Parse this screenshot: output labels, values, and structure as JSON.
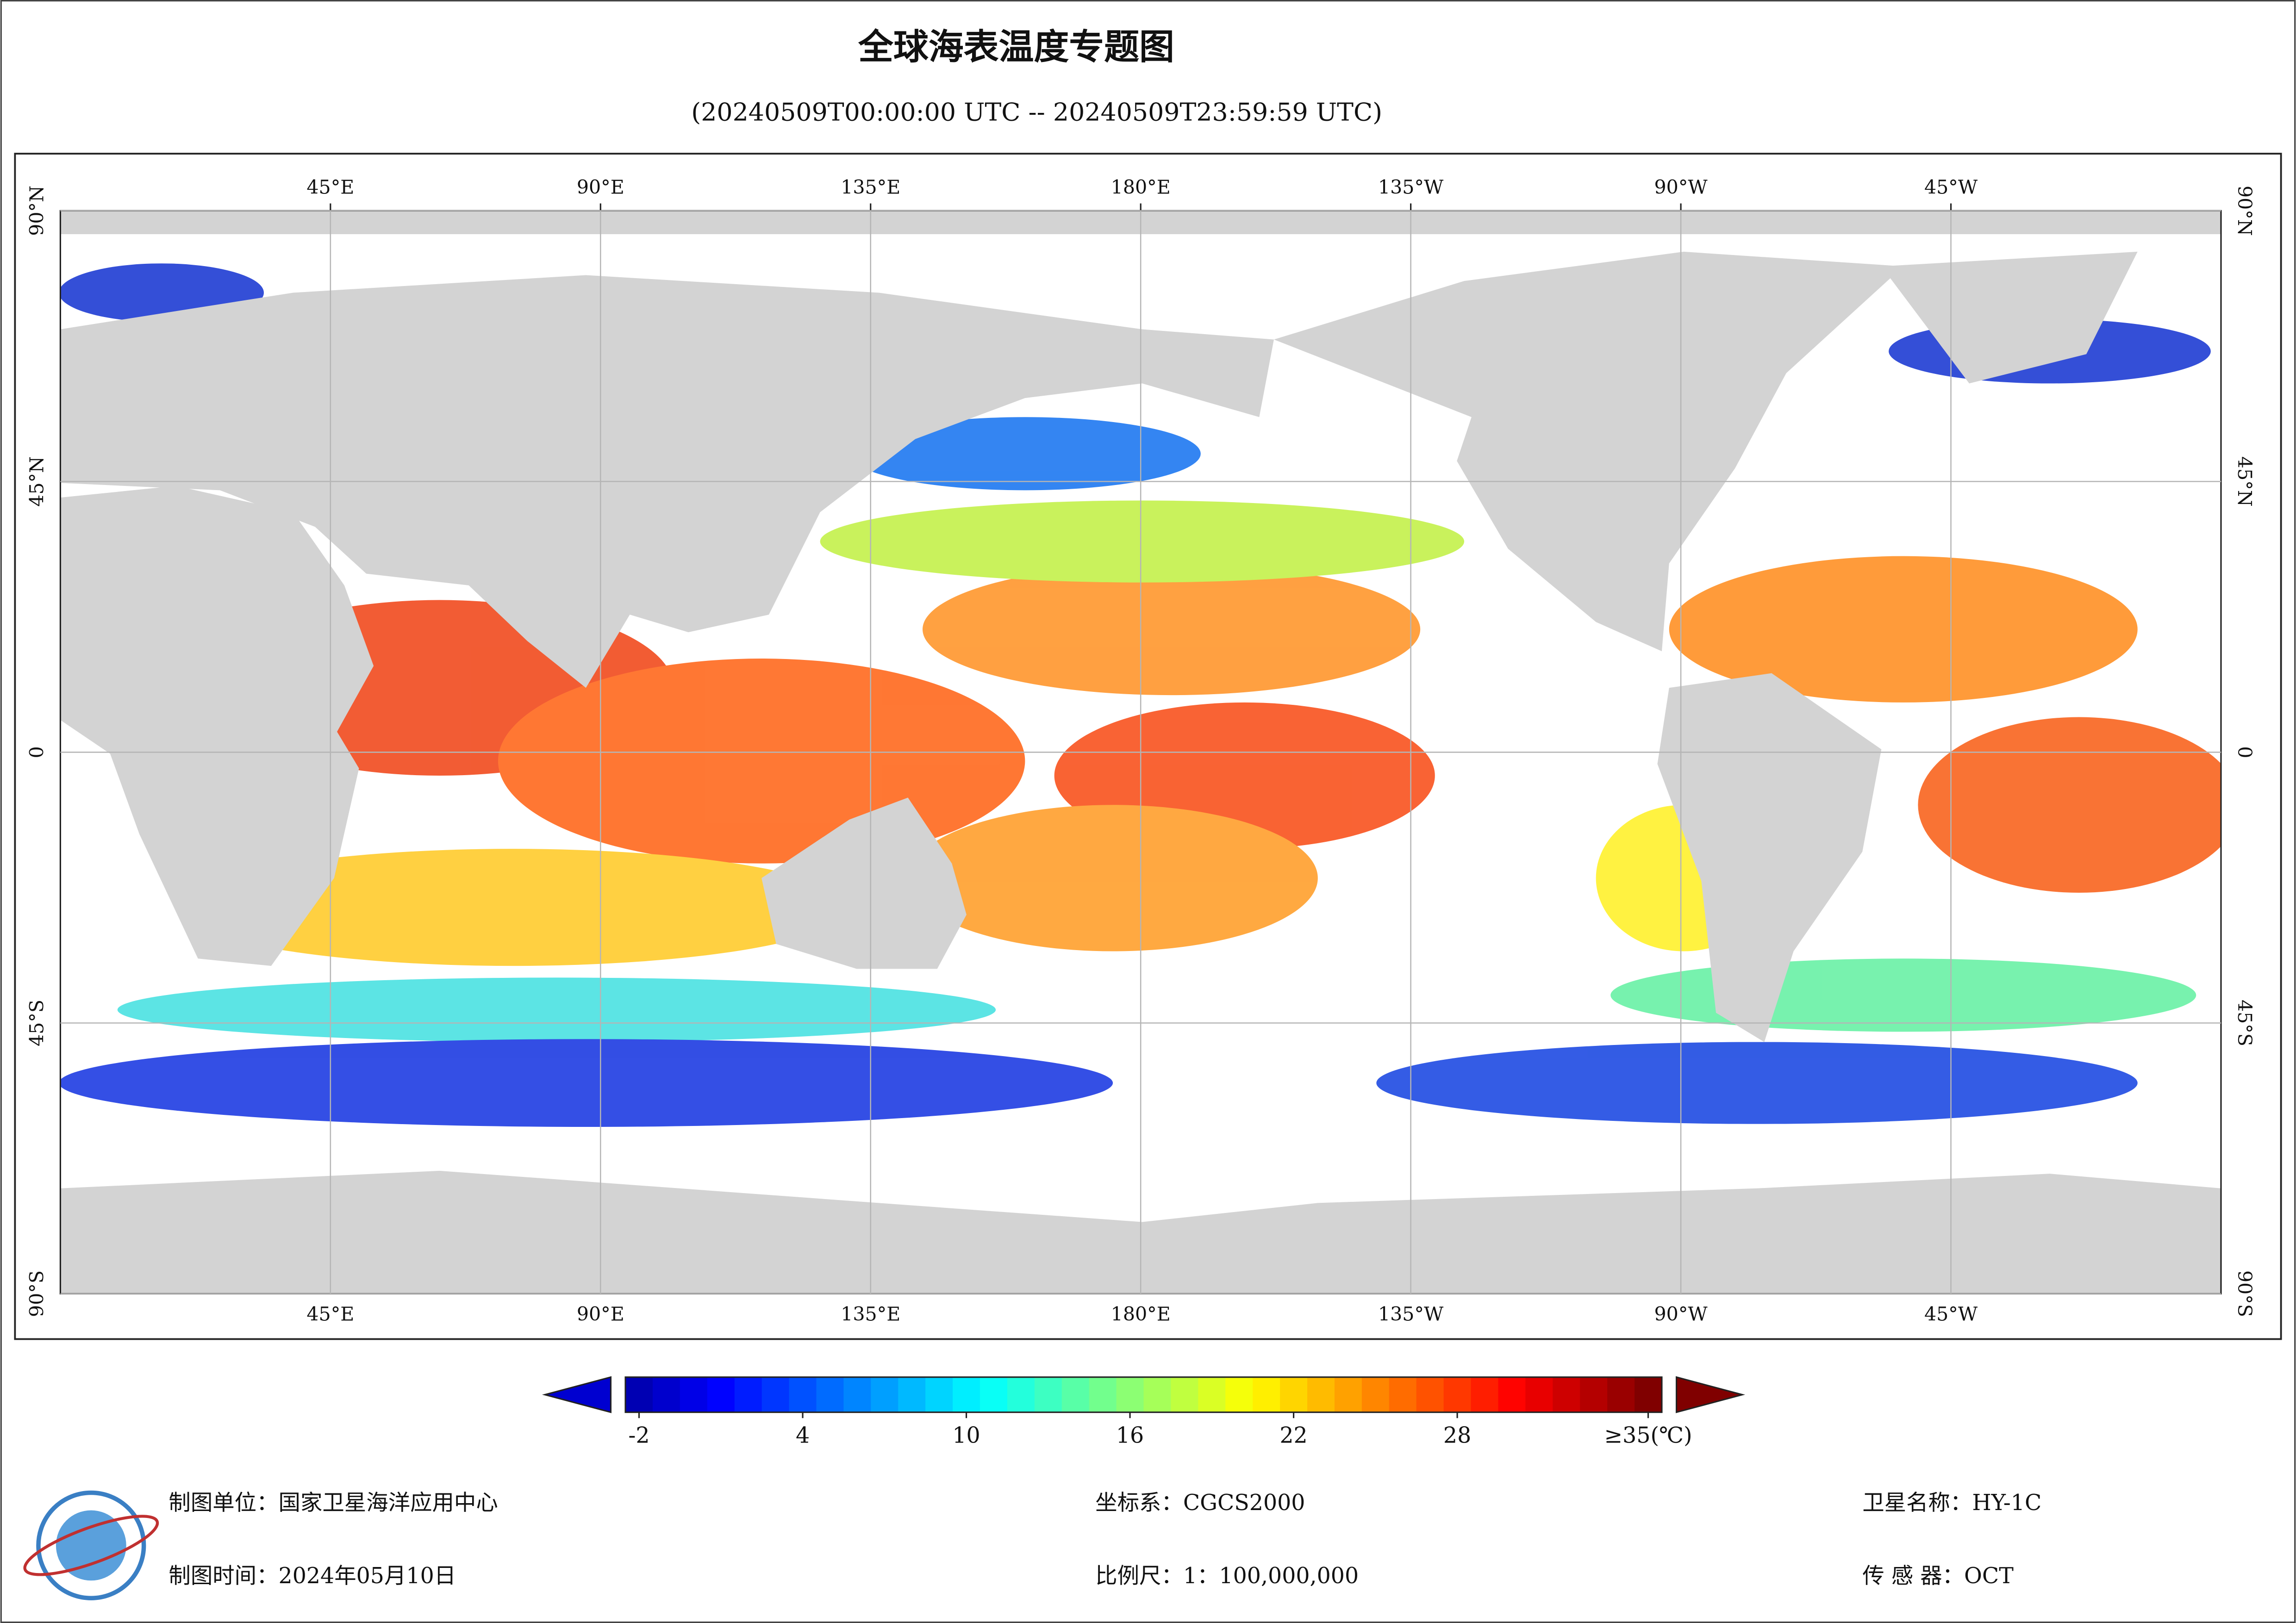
{
  "title": "全球海表温度专题图",
  "subtitle": "(20240509T00:00:00 UTC -- 20240509T23:59:59 UTC)",
  "map": {
    "lon_ticks": [
      {
        "value": 45,
        "label": "45°E"
      },
      {
        "value": 90,
        "label": "90°E"
      },
      {
        "value": 135,
        "label": "135°E"
      },
      {
        "value": 180,
        "label": "180°E"
      },
      {
        "value": 225,
        "label": "135°W"
      },
      {
        "value": 270,
        "label": "90°W"
      },
      {
        "value": 315,
        "label": "45°W"
      }
    ],
    "lat_ticks": [
      {
        "value": 90,
        "label": "90°N"
      },
      {
        "value": 45,
        "label": "45°N"
      },
      0,
      {
        "value": -45,
        "label": "45°S"
      },
      {
        "value": -90,
        "label": "90°S"
      }
    ]
  },
  "colorbar": {
    "lim": [
      -2,
      35
    ],
    "ticks": [
      -2,
      4,
      10,
      16,
      22,
      28,
      {
        "value": 35,
        "label": "≥35(℃)"
      }
    ]
  },
  "footer": [
    {
      "label": "制图单位：",
      "value": "国家卫星海洋应用中心"
    },
    {
      "label": "制图时间：",
      "value": "2024年05月10日"
    },
    {
      "label": "坐标系：",
      "value": "CGCS2000"
    },
    {
      "label": "比例尺：",
      "value": "1：100,000,000"
    },
    {
      "label": "卫星名称：",
      "value": "HY-1C"
    },
    {
      "label": "传 感 器：",
      "value": "OCT"
    }
  ]
}
